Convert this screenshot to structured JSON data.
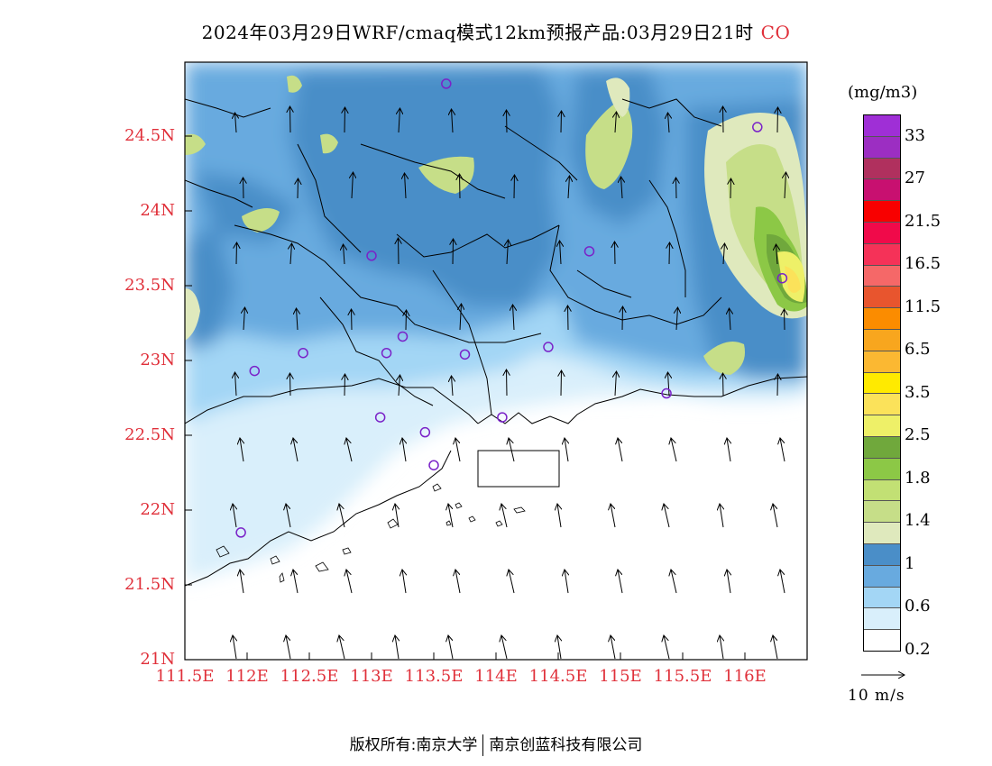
{
  "title": {
    "text": "2024年03月29日WRF/cmaq模式12km预报产品:03月29日21时",
    "species": "CO"
  },
  "map": {
    "lat_labels": [
      "24.5N",
      "24N",
      "23.5N",
      "23N",
      "22.5N",
      "22N",
      "21.5N",
      "21N"
    ],
    "lon_labels": [
      "111.5E",
      "112E",
      "112.5E",
      "113E",
      "113.5E",
      "114E",
      "114.5E",
      "115E",
      "115.5E",
      "116E"
    ],
    "stations": [
      {
        "lon": 113.6,
        "lat": 24.85
      },
      {
        "lon": 116.1,
        "lat": 24.56
      },
      {
        "lon": 113.0,
        "lat": 23.7
      },
      {
        "lon": 114.75,
        "lat": 23.73
      },
      {
        "lon": 116.3,
        "lat": 23.55
      },
      {
        "lon": 113.25,
        "lat": 23.16
      },
      {
        "lon": 112.45,
        "lat": 23.05
      },
      {
        "lon": 113.12,
        "lat": 23.05
      },
      {
        "lon": 113.75,
        "lat": 23.04
      },
      {
        "lon": 114.42,
        "lat": 23.09
      },
      {
        "lon": 112.06,
        "lat": 22.93
      },
      {
        "lon": 115.37,
        "lat": 22.78
      },
      {
        "lon": 113.07,
        "lat": 22.62
      },
      {
        "lon": 114.05,
        "lat": 22.62
      },
      {
        "lon": 113.43,
        "lat": 22.52
      },
      {
        "lon": 113.5,
        "lat": 22.3
      },
      {
        "lon": 111.95,
        "lat": 21.85
      }
    ]
  },
  "legend": {
    "unit": "(mg/m3)",
    "colors": [
      "#9f2fd6",
      "#9c2ec2",
      "#b0305e",
      "#c81070",
      "#f80000",
      "#f00a4a",
      "#f53258",
      "#f56868",
      "#e8552e",
      "#fb8c00",
      "#f8a61e",
      "#fbb832",
      "#ffea00",
      "#fbe25a",
      "#eef068",
      "#70a83c",
      "#8cc846",
      "#c2e074",
      "#c6de88",
      "#dfe9bd",
      "#4a8ec8",
      "#68aadf",
      "#a3d6f5",
      "#d9effb",
      "#ffffff"
    ],
    "tick_labels": [
      "33",
      "27",
      "21.5",
      "16.5",
      "11.5",
      "6.5",
      "3.5",
      "2.5",
      "1.8",
      "1.4",
      "1",
      "0.6",
      "0.2"
    ]
  },
  "vector_legend": {
    "label": "10 m/s"
  },
  "copyright": {
    "left": "版权所有:南京大学",
    "right": "南京创蓝科技有限公司"
  }
}
